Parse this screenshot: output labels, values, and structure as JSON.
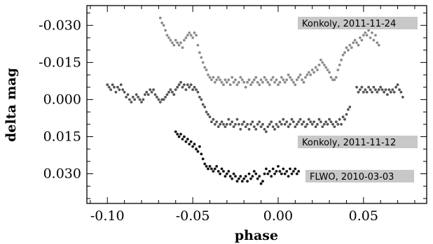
{
  "chart_data": {
    "type": "scatter",
    "xlabel": "phase",
    "ylabel": "delta mag",
    "xlim": [
      -0.112,
      0.087
    ],
    "ylim": [
      0.042,
      -0.038
    ],
    "y_inverted": true,
    "x_ticks": [
      -0.1,
      -0.05,
      0.0,
      0.05
    ],
    "x_tick_labels": [
      "-0.10",
      "-0.05",
      "0.00",
      "0.05"
    ],
    "y_ticks": [
      -0.03,
      -0.015,
      0.0,
      0.015,
      0.03
    ],
    "y_tick_labels": [
      "-0.030",
      "-0.015",
      "0.000",
      "0.015",
      "0.030"
    ],
    "grid": false,
    "series": [
      {
        "name": "Konkoly, 2011-11-24",
        "color": "#8c8c8c",
        "x": [
          -0.069,
          -0.068,
          -0.067,
          -0.066,
          -0.065,
          -0.064,
          -0.063,
          -0.062,
          -0.061,
          -0.06,
          -0.059,
          -0.058,
          -0.057,
          -0.056,
          -0.055,
          -0.054,
          -0.053,
          -0.052,
          -0.051,
          -0.05,
          -0.049,
          -0.048,
          -0.047,
          -0.046,
          -0.045,
          -0.044,
          -0.043,
          -0.042,
          -0.041,
          -0.04,
          -0.039,
          -0.038,
          -0.037,
          -0.036,
          -0.035,
          -0.034,
          -0.033,
          -0.032,
          -0.031,
          -0.03,
          -0.029,
          -0.028,
          -0.027,
          -0.026,
          -0.025,
          -0.024,
          -0.023,
          -0.022,
          -0.021,
          -0.02,
          -0.019,
          -0.018,
          -0.017,
          -0.016,
          -0.015,
          -0.014,
          -0.013,
          -0.012,
          -0.011,
          -0.01,
          -0.009,
          -0.008,
          -0.007,
          -0.006,
          -0.005,
          -0.004,
          -0.003,
          -0.002,
          -0.001,
          0.0,
          0.001,
          0.002,
          0.003,
          0.004,
          0.005,
          0.006,
          0.007,
          0.008,
          0.009,
          0.01,
          0.011,
          0.012,
          0.013,
          0.014,
          0.015,
          0.016,
          0.017,
          0.018,
          0.019,
          0.02,
          0.021,
          0.022,
          0.023,
          0.024,
          0.025,
          0.026,
          0.027,
          0.028,
          0.029,
          0.03,
          0.031,
          0.032,
          0.033,
          0.034,
          0.035,
          0.036,
          0.037,
          0.038,
          0.039,
          0.04,
          0.041,
          0.042,
          0.043,
          0.044,
          0.045,
          0.046,
          0.047,
          0.048,
          0.049,
          0.05,
          0.051,
          0.052,
          0.053,
          0.054,
          0.055,
          0.056,
          0.057,
          0.058,
          0.059
        ],
        "y": [
          -0.033,
          -0.031,
          -0.03,
          -0.028,
          -0.026,
          -0.025,
          -0.024,
          -0.023,
          -0.022,
          -0.024,
          -0.023,
          -0.022,
          -0.023,
          -0.021,
          -0.024,
          -0.025,
          -0.026,
          -0.027,
          -0.026,
          -0.025,
          -0.027,
          -0.026,
          -0.022,
          -0.019,
          -0.017,
          -0.015,
          -0.013,
          -0.012,
          -0.01,
          -0.009,
          -0.008,
          -0.009,
          -0.007,
          -0.008,
          -0.009,
          -0.008,
          -0.007,
          -0.006,
          -0.008,
          -0.007,
          -0.008,
          -0.006,
          -0.009,
          -0.007,
          -0.008,
          -0.006,
          -0.007,
          -0.009,
          -0.008,
          -0.007,
          -0.005,
          -0.007,
          -0.008,
          -0.006,
          -0.007,
          -0.008,
          -0.009,
          -0.007,
          -0.006,
          -0.008,
          -0.007,
          -0.009,
          -0.008,
          -0.007,
          -0.006,
          -0.008,
          -0.009,
          -0.007,
          -0.008,
          -0.006,
          -0.007,
          -0.009,
          -0.008,
          -0.007,
          -0.008,
          -0.01,
          -0.009,
          -0.008,
          -0.007,
          -0.006,
          -0.008,
          -0.009,
          -0.01,
          -0.008,
          -0.007,
          -0.009,
          -0.01,
          -0.011,
          -0.01,
          -0.012,
          -0.011,
          -0.013,
          -0.012,
          -0.014,
          -0.016,
          -0.015,
          -0.014,
          -0.013,
          -0.012,
          -0.011,
          -0.009,
          -0.008,
          -0.008,
          -0.009,
          -0.012,
          -0.014,
          -0.016,
          -0.018,
          -0.019,
          -0.021,
          -0.02,
          -0.022,
          -0.021,
          -0.023,
          -0.024,
          -0.023,
          -0.022,
          -0.025,
          -0.024,
          -0.026,
          -0.027,
          -0.026,
          -0.028,
          -0.025,
          -0.027,
          -0.024,
          -0.026,
          -0.023,
          -0.022
        ]
      },
      {
        "name": "Konkoly, 2011-11-12",
        "color": "#555555",
        "x": [
          -0.1,
          -0.099,
          -0.098,
          -0.097,
          -0.096,
          -0.095,
          -0.094,
          -0.093,
          -0.092,
          -0.091,
          -0.09,
          -0.089,
          -0.088,
          -0.087,
          -0.086,
          -0.085,
          -0.084,
          -0.083,
          -0.082,
          -0.081,
          -0.08,
          -0.079,
          -0.078,
          -0.077,
          -0.076,
          -0.075,
          -0.074,
          -0.073,
          -0.072,
          -0.071,
          -0.07,
          -0.069,
          -0.068,
          -0.067,
          -0.066,
          -0.065,
          -0.064,
          -0.063,
          -0.062,
          -0.061,
          -0.06,
          -0.059,
          -0.058,
          -0.057,
          -0.056,
          -0.055,
          -0.054,
          -0.053,
          -0.052,
          -0.051,
          -0.05,
          -0.049,
          -0.048,
          -0.047,
          -0.046,
          -0.045,
          -0.044,
          -0.043,
          -0.042,
          -0.041,
          -0.04,
          -0.039,
          -0.038,
          -0.037,
          -0.036,
          -0.035,
          -0.034,
          -0.033,
          -0.032,
          -0.031,
          -0.03,
          -0.029,
          -0.028,
          -0.027,
          -0.026,
          -0.025,
          -0.024,
          -0.023,
          -0.022,
          -0.021,
          -0.02,
          -0.019,
          -0.018,
          -0.017,
          -0.016,
          -0.015,
          -0.014,
          -0.013,
          -0.012,
          -0.011,
          -0.01,
          -0.009,
          -0.008,
          -0.007,
          -0.006,
          -0.005,
          -0.004,
          -0.003,
          -0.002,
          -0.001,
          0.0,
          0.001,
          0.002,
          0.003,
          0.004,
          0.005,
          0.006,
          0.007,
          0.008,
          0.009,
          0.01,
          0.011,
          0.012,
          0.013,
          0.014,
          0.015,
          0.016,
          0.017,
          0.018,
          0.019,
          0.02,
          0.021,
          0.022,
          0.023,
          0.024,
          0.025,
          0.026,
          0.027,
          0.028,
          0.029,
          0.03,
          0.031,
          0.032,
          0.033,
          0.034,
          0.035,
          0.036,
          0.037,
          0.038,
          0.039,
          0.04,
          0.041,
          0.042,
          0.046,
          0.047,
          0.048,
          0.049,
          0.05,
          0.051,
          0.052,
          0.053,
          0.054,
          0.055,
          0.056,
          0.057,
          0.058,
          0.059,
          0.06,
          0.061,
          0.062,
          0.063,
          0.064,
          0.065,
          0.066,
          0.067,
          0.068,
          0.069,
          0.07,
          0.071,
          0.072,
          0.073
        ],
        "y": [
          -0.006,
          -0.005,
          -0.004,
          -0.006,
          -0.005,
          -0.003,
          -0.005,
          -0.004,
          -0.006,
          -0.004,
          -0.003,
          -0.001,
          -0.002,
          0.0,
          0.001,
          -0.001,
          0.0,
          -0.002,
          -0.001,
          0.0,
          0.001,
          0.0,
          -0.002,
          -0.003,
          -0.002,
          -0.004,
          -0.003,
          -0.004,
          -0.002,
          -0.001,
          0.0,
          0.001,
          0.0,
          0.0,
          -0.001,
          -0.002,
          -0.003,
          -0.004,
          -0.003,
          -0.002,
          -0.004,
          -0.005,
          -0.006,
          -0.007,
          -0.005,
          -0.006,
          -0.004,
          -0.006,
          -0.005,
          -0.006,
          -0.004,
          -0.005,
          -0.004,
          -0.003,
          -0.001,
          0.0,
          0.002,
          0.003,
          0.005,
          0.006,
          0.007,
          0.009,
          0.008,
          0.01,
          0.009,
          0.011,
          0.01,
          0.009,
          0.01,
          0.011,
          0.01,
          0.008,
          0.01,
          0.009,
          0.011,
          0.01,
          0.008,
          0.01,
          0.012,
          0.01,
          0.009,
          0.011,
          0.01,
          0.012,
          0.01,
          0.009,
          0.011,
          0.012,
          0.01,
          0.009,
          0.011,
          0.01,
          0.012,
          0.013,
          0.011,
          0.01,
          0.009,
          0.011,
          0.012,
          0.01,
          0.011,
          0.009,
          0.01,
          0.008,
          0.01,
          0.009,
          0.011,
          0.01,
          0.008,
          0.009,
          0.011,
          0.01,
          0.009,
          0.008,
          0.01,
          0.009,
          0.011,
          0.01,
          0.008,
          0.009,
          0.01,
          0.009,
          0.011,
          0.01,
          0.008,
          0.009,
          0.011,
          0.01,
          0.009,
          0.01,
          0.008,
          0.009,
          0.01,
          0.011,
          0.009,
          0.01,
          0.008,
          0.01,
          0.007,
          0.008,
          0.006,
          0.004,
          0.003,
          -0.005,
          -0.003,
          -0.004,
          -0.005,
          -0.003,
          -0.004,
          -0.003,
          -0.005,
          -0.004,
          -0.003,
          -0.005,
          -0.004,
          -0.003,
          -0.004,
          -0.005,
          -0.004,
          -0.003,
          -0.004,
          -0.002,
          -0.004,
          -0.003,
          -0.004,
          -0.003,
          -0.005,
          -0.006,
          -0.004,
          -0.003,
          -0.001
        ]
      },
      {
        "name": "FLWO, 2010-03-03",
        "color": "#111111",
        "x": [
          -0.06,
          -0.059,
          -0.058,
          -0.057,
          -0.056,
          -0.055,
          -0.054,
          -0.053,
          -0.052,
          -0.051,
          -0.05,
          -0.049,
          -0.048,
          -0.047,
          -0.046,
          -0.045,
          -0.044,
          -0.043,
          -0.042,
          -0.041,
          -0.04,
          -0.039,
          -0.038,
          -0.037,
          -0.036,
          -0.035,
          -0.034,
          -0.033,
          -0.032,
          -0.031,
          -0.03,
          -0.029,
          -0.028,
          -0.027,
          -0.026,
          -0.025,
          -0.024,
          -0.023,
          -0.022,
          -0.021,
          -0.02,
          -0.019,
          -0.018,
          -0.017,
          -0.016,
          -0.015,
          -0.014,
          -0.013,
          -0.012,
          -0.011,
          -0.01,
          -0.009,
          -0.008,
          -0.007,
          -0.006,
          -0.005,
          -0.004,
          -0.003,
          -0.002,
          -0.001,
          0.0,
          0.001,
          0.002,
          0.003,
          0.004,
          0.005,
          0.006,
          0.007,
          0.008,
          0.009,
          0.01,
          0.011,
          0.012
        ],
        "y": [
          0.013,
          0.014,
          0.015,
          0.014,
          0.016,
          0.015,
          0.017,
          0.016,
          0.018,
          0.017,
          0.019,
          0.018,
          0.02,
          0.021,
          0.019,
          0.022,
          0.024,
          0.026,
          0.027,
          0.028,
          0.027,
          0.028,
          0.029,
          0.028,
          0.027,
          0.029,
          0.03,
          0.028,
          0.029,
          0.031,
          0.03,
          0.029,
          0.031,
          0.032,
          0.03,
          0.031,
          0.033,
          0.032,
          0.031,
          0.033,
          0.032,
          0.031,
          0.033,
          0.03,
          0.032,
          0.031,
          0.029,
          0.03,
          0.032,
          0.031,
          0.034,
          0.033,
          0.03,
          0.028,
          0.03,
          0.029,
          0.031,
          0.028,
          0.03,
          0.029,
          0.027,
          0.029,
          0.03,
          0.028,
          0.03,
          0.029,
          0.031,
          0.028,
          0.03,
          0.029,
          0.028,
          0.03,
          0.029
        ]
      }
    ],
    "annotations": [
      {
        "text": "Konkoly, 2011-11-24",
        "series": 0
      },
      {
        "text": "Konkoly, 2011-11-12",
        "series": 1
      },
      {
        "text": "FLWO, 2010-03-03",
        "series": 2
      }
    ]
  }
}
